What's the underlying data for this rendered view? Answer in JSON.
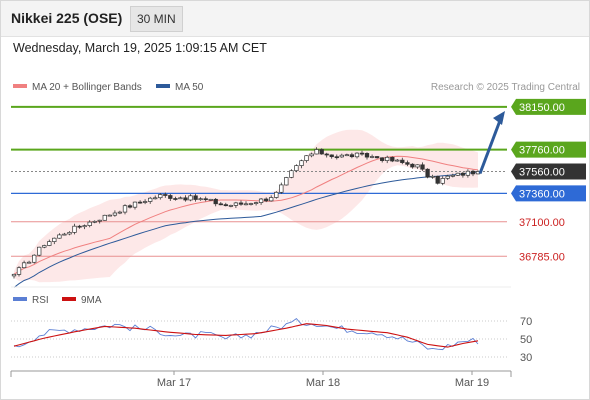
{
  "header": {
    "title": "Nikkei 225 (OSE)",
    "timeframe": "30 MIN",
    "datetime": "Wednesday, March 19, 2025 1:09:15 AM CET"
  },
  "legend": {
    "ma20_label": "MA 20 + Bollinger Bands",
    "ma50_label": "MA 50",
    "credit": "Research © 2025 Trading Central",
    "rsi_label": "RSI",
    "ma9_label": "9MA"
  },
  "colors": {
    "price": "#333333",
    "ma20": "#f08080",
    "ma50": "#2d5a9a",
    "bollinger_fill": "#fde2e2",
    "resistance": "#5aa61d",
    "pivot": "#2e6ad6",
    "support": "#e89090",
    "current": "#333333",
    "arrow": "#2d5a9a",
    "rsi": "#5b7fd4",
    "rsi_ma": "#cc1111"
  },
  "chart_data": [
    {
      "type": "candlestick",
      "x_tick_labels": [
        "Mar 17",
        "Mar 18",
        "Mar 19"
      ],
      "ylim": [
        36550,
        38250
      ],
      "levels": [
        {
          "label": "38150.00",
          "value": 38150,
          "kind": "resistance"
        },
        {
          "label": "37760.00",
          "value": 37760,
          "kind": "resistance"
        },
        {
          "label": "37560.00",
          "value": 37560,
          "kind": "current"
        },
        {
          "label": "37360.00",
          "value": 37360,
          "kind": "pivot"
        },
        {
          "label": "37100.00",
          "value": 37100,
          "kind": "support"
        },
        {
          "label": "36785.00",
          "value": 36785,
          "kind": "support"
        }
      ],
      "projection": {
        "from": 37560,
        "to": 38150
      },
      "series": [
        {
          "name": "MA 20 + Bollinger Bands",
          "role": "ma20"
        },
        {
          "name": "MA 50",
          "role": "ma50"
        }
      ],
      "anchors": [
        {
          "bar": 0,
          "price": 36620
        },
        {
          "bar": 3,
          "price": 36750
        },
        {
          "bar": 6,
          "price": 36900
        },
        {
          "bar": 10,
          "price": 37000
        },
        {
          "bar": 14,
          "price": 37080
        },
        {
          "bar": 18,
          "price": 37150
        },
        {
          "bar": 22,
          "price": 37230
        },
        {
          "bar": 26,
          "price": 37300
        },
        {
          "bar": 29,
          "price": 37340
        },
        {
          "bar": 34,
          "price": 37320
        },
        {
          "bar": 38,
          "price": 37300
        },
        {
          "bar": 42,
          "price": 37250
        },
        {
          "bar": 46,
          "price": 37270
        },
        {
          "bar": 50,
          "price": 37310
        },
        {
          "bar": 52,
          "price": 37360
        },
        {
          "bar": 55,
          "price": 37550
        },
        {
          "bar": 58,
          "price": 37700
        },
        {
          "bar": 60,
          "price": 37740
        },
        {
          "bar": 64,
          "price": 37700
        },
        {
          "bar": 68,
          "price": 37710
        },
        {
          "bar": 72,
          "price": 37690
        },
        {
          "bar": 76,
          "price": 37650
        },
        {
          "bar": 80,
          "price": 37610
        },
        {
          "bar": 82,
          "price": 37520
        },
        {
          "bar": 84,
          "price": 37470
        },
        {
          "bar": 86,
          "price": 37510
        },
        {
          "bar": 90,
          "price": 37550
        },
        {
          "bar": 92,
          "price": 37560
        }
      ]
    },
    {
      "type": "line",
      "title": "RSI",
      "y_ticks": [
        70,
        50,
        30
      ],
      "ylim": [
        20,
        80
      ],
      "series": [
        {
          "name": "RSI",
          "anchors": [
            {
              "bar": 0,
              "value": 40
            },
            {
              "bar": 5,
              "value": 55
            },
            {
              "bar": 10,
              "value": 60
            },
            {
              "bar": 16,
              "value": 63
            },
            {
              "bar": 20,
              "value": 66
            },
            {
              "bar": 24,
              "value": 62
            },
            {
              "bar": 28,
              "value": 60
            },
            {
              "bar": 33,
              "value": 53
            },
            {
              "bar": 38,
              "value": 55
            },
            {
              "bar": 42,
              "value": 50
            },
            {
              "bar": 47,
              "value": 55
            },
            {
              "bar": 52,
              "value": 63
            },
            {
              "bar": 56,
              "value": 69
            },
            {
              "bar": 60,
              "value": 68
            },
            {
              "bar": 64,
              "value": 62
            },
            {
              "bar": 68,
              "value": 60
            },
            {
              "bar": 72,
              "value": 58
            },
            {
              "bar": 76,
              "value": 52
            },
            {
              "bar": 80,
              "value": 45
            },
            {
              "bar": 83,
              "value": 38
            },
            {
              "bar": 86,
              "value": 42
            },
            {
              "bar": 89,
              "value": 48
            },
            {
              "bar": 92,
              "value": 48
            }
          ]
        },
        {
          "name": "9MA",
          "anchors": [
            {
              "bar": 0,
              "value": 42
            },
            {
              "bar": 6,
              "value": 51
            },
            {
              "bar": 12,
              "value": 58
            },
            {
              "bar": 18,
              "value": 64
            },
            {
              "bar": 24,
              "value": 62
            },
            {
              "bar": 30,
              "value": 58
            },
            {
              "bar": 36,
              "value": 55
            },
            {
              "bar": 42,
              "value": 54
            },
            {
              "bar": 48,
              "value": 56
            },
            {
              "bar": 54,
              "value": 62
            },
            {
              "bar": 58,
              "value": 67
            },
            {
              "bar": 62,
              "value": 65
            },
            {
              "bar": 66,
              "value": 61
            },
            {
              "bar": 70,
              "value": 59
            },
            {
              "bar": 74,
              "value": 57
            },
            {
              "bar": 78,
              "value": 52
            },
            {
              "bar": 82,
              "value": 44
            },
            {
              "bar": 86,
              "value": 41
            },
            {
              "bar": 89,
              "value": 45
            },
            {
              "bar": 92,
              "value": 48
            }
          ]
        }
      ]
    }
  ]
}
